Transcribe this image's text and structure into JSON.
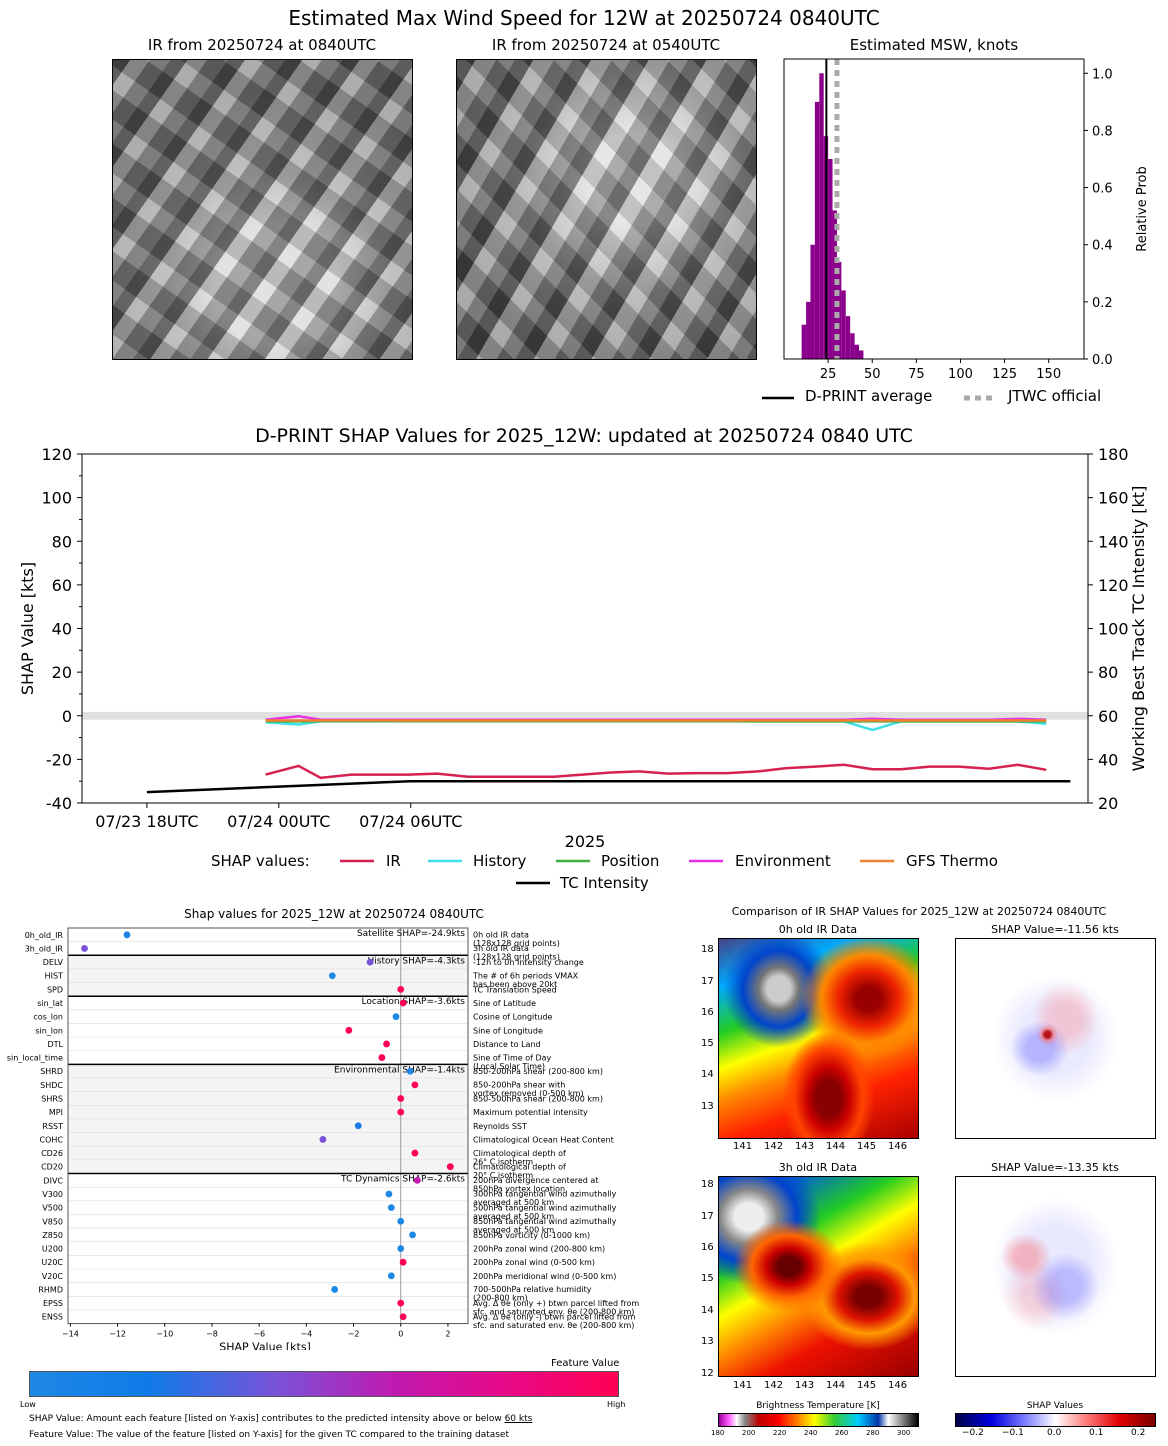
{
  "main_title": "Estimated Max Wind Speed for 12W at 20250724 0840UTC",
  "panel1_title": "IR from 20250724 at 0840UTC",
  "panel2_title": "IR from 20250724 at 0540UTC",
  "hist": {
    "title": "Estimated MSW, knots",
    "ylabel": "Relative Prob",
    "xticks": [
      "25",
      "50",
      "75",
      "100",
      "125",
      "150"
    ],
    "yticks": [
      "0.0",
      "0.2",
      "0.4",
      "0.6",
      "0.8",
      "1.0"
    ],
    "legend_dprint": "D-PRINT average",
    "legend_jtwc": "JTWC official"
  },
  "ts": {
    "title": "D-PRINT SHAP Values for 2025_12W: updated at 20250724 0840 UTC",
    "ylabel_left": "SHAP Value [kts]",
    "ylabel_right": "Working Best Track TC Intensity [kt]",
    "xlabel": "2025",
    "xticks": [
      "07/23 18UTC",
      "07/24 00UTC",
      "07/24 06UTC"
    ],
    "yticks_left": [
      "120",
      "100",
      "80",
      "60",
      "40",
      "20",
      "0",
      "-20",
      "-40"
    ],
    "yticks_right": [
      "180",
      "160",
      "140",
      "120",
      "100",
      "80",
      "60",
      "40",
      "20"
    ],
    "legend_prefix": "SHAP values:",
    "legend": [
      "IR",
      "History",
      "Position",
      "Environment",
      "GFS Thermo",
      "TC Intensity"
    ]
  },
  "bee": {
    "title": "Shap values for 2025_12W at 20250724 0840UTC",
    "xlabel": "SHAP Value [kts]",
    "xticks": [
      "−14",
      "−12",
      "−10",
      "−8",
      "−6",
      "−4",
      "−2",
      "0",
      "2"
    ],
    "groups": [
      "Satellite SHAP=-24.9kts",
      "History SHAP=-4.3kts",
      "Location SHAP=-3.6kts",
      "Environmental SHAP=-1.4kts",
      "TC Dynamics SHAP=-2.6kts"
    ],
    "features": [
      "0h_old_IR",
      "3h_old_IR",
      "DELV",
      "HIST",
      "SPD",
      "sin_lat",
      "cos_lon",
      "sin_lon",
      "DTL",
      "sin_local_time",
      "SHRD",
      "SHDC",
      "SHRS",
      "MPI",
      "RSST",
      "COHC",
      "CD26",
      "CD20",
      "DIVC",
      "V300",
      "V500",
      "V850",
      "Z850",
      "U200",
      "U20C",
      "V20C",
      "RHMD",
      "EPSS",
      "ENSS"
    ],
    "descriptions": [
      "0h old IR data\n(128x128 grid points)",
      "3h old IR data\n(128x128 grid points)",
      "-12h to 0h Intensity change",
      "The # of 6h periods VMAX\nhas been above 20kt",
      "TC Translation Speed",
      "Sine of Latitude",
      "Cosine of Longitude",
      "Sine of Longitude",
      "Distance to Land",
      "Sine of Time of Day\n(Local Solar Time)",
      "850-200hPa shear (200-800 km)",
      "850-200hPa shear with\nvortex removed (0-500 km)",
      "850-500hPa shear (200-800 km)",
      "Maximum potential intensity",
      "Reynolds SST",
      "Climatological Ocean Heat Content",
      "Climatological depth of\n26° C isotherm",
      "Climatological depth of\n20° C isotherm",
      "200hPa divergence centered at\n850hPa vortex location",
      "300hPa tangential wind azimuthally\naveraged at 500 km",
      "500hPa tangential wind azimuthally\naveraged at 500 km",
      "850hPa tangential wind azimuthally\naveraged at 500 km",
      "850hPa vorticity (0-1000 km)",
      "200hPa zonal wind (200-800 km)",
      "200hPa zonal wind (0-500 km)",
      "200hPa meridional wind (0-500 km)",
      "700-500hPa relative humidity\n(200-800 km)",
      "Avg. Δ θe (only +) btwn parcel lifted from\nsfc. and saturated env. θe (200-800 km)",
      "Avg. Δ θe (only -) btwn parcel lifted from\nsfc. and saturated env. θe (200-800 km)"
    ],
    "values": [
      -11.6,
      -13.4,
      -1.3,
      -2.9,
      0.0,
      0.1,
      -0.2,
      -2.2,
      -0.6,
      -0.8,
      0.4,
      0.6,
      0.0,
      0.0,
      -1.8,
      -3.3,
      0.6,
      2.1,
      0.7,
      -0.5,
      -0.4,
      0.0,
      0.5,
      0.0,
      0.1,
      -0.4,
      -2.8,
      0.0,
      0.1
    ],
    "feature_scores": [
      0.1,
      0.5,
      0.5,
      0.0,
      1.0,
      1.0,
      0.0,
      1.0,
      1.0,
      1.0,
      0.0,
      1.0,
      1.0,
      1.0,
      0.3,
      0.5,
      1.0,
      1.0,
      0.7,
      0.0,
      0.0,
      0.0,
      0.0,
      0.0,
      1.0,
      0.0,
      0.0,
      1.0,
      1.0
    ],
    "colorbar_label": "Feature Value",
    "colorbar_low": "Low",
    "colorbar_high": "High",
    "note1_prefix": "SHAP Value: Amount each feature [listed on Y-axis] contributes to the predicted intensity above or below ",
    "note1_underlined": "60 kts",
    "note2": "Feature Value: The value of the feature [listed on Y-axis] for the given TC compared to the training dataset"
  },
  "cmp": {
    "title": "Comparison of IR SHAP Values for 2025_12W at 20250724 0840UTC",
    "panel_0h": "0h old IR Data",
    "panel_3h": "3h old IR Data",
    "shap_0h": "SHAP Value=-11.56 kts",
    "shap_3h": "SHAP Value=-13.35 kts",
    "lon_ticks": [
      "141",
      "142",
      "143",
      "144",
      "145",
      "146"
    ],
    "lat_ticks_0h": [
      "18",
      "17",
      "16",
      "15",
      "14",
      "13"
    ],
    "lat_ticks_3h": [
      "18",
      "17",
      "16",
      "15",
      "14",
      "13",
      "12"
    ],
    "bt_label": "Brightness Temperature [K]",
    "bt_ticks": [
      "180",
      "200",
      "220",
      "240",
      "260",
      "280",
      "300"
    ],
    "shapval_label": "SHAP Values",
    "shapval_ticks": [
      "−0.2",
      "−0.1",
      "0.0",
      "0.1",
      "0.2"
    ]
  },
  "chart_data": [
    {
      "type": "bar",
      "title": "Estimated MSW, knots",
      "xlabel": "",
      "ylabel": "Relative Prob",
      "xlim": [
        0,
        170
      ],
      "ylim": [
        0,
        1.05
      ],
      "bin_width": 2.5,
      "bin_starts": [
        10,
        12.5,
        15,
        17.5,
        20,
        22.5,
        25,
        27.5,
        30,
        32.5,
        35,
        37.5,
        40,
        42.5
      ],
      "values": [
        0.12,
        0.2,
        0.4,
        0.9,
        1.0,
        0.78,
        0.7,
        0.52,
        0.34,
        0.24,
        0.15,
        0.09,
        0.05,
        0.03
      ],
      "dprint_average": 24,
      "jtwc_official": 30
    },
    {
      "type": "line",
      "title": "D-PRINT SHAP Values for 2025_12W: updated at 20250724 0840 UTC",
      "xlabel": "2025",
      "ylabel": "SHAP Value [kts]",
      "ylim": [
        -40,
        120
      ],
      "y2label": "Working Best Track TC Intensity [kt]",
      "y2lim": [
        20,
        180
      ],
      "x_hours_since_0723_18UTC": [
        5.4,
        6.9,
        7.9,
        9.3,
        10.6,
        11.9,
        13.2,
        14.6,
        15.9,
        17.2,
        18.5,
        19.8,
        21.1,
        22.4,
        23.7,
        25.0,
        26.4,
        27.8,
        29.1,
        30.4,
        31.7,
        33.0,
        34.3,
        35.6,
        36.9,
        38.3,
        39.6,
        40.9
      ],
      "series": [
        {
          "name": "IR",
          "color": "#d62050",
          "values": [
            -27,
            -23,
            -28.5,
            -27,
            -27,
            -27,
            -26.5,
            -28,
            -28,
            -28,
            -28,
            -27,
            -26,
            -25.5,
            -26.5,
            -26.3,
            -26.3,
            -25.5,
            -24,
            -23.3,
            -22.5,
            -24.5,
            -24.5,
            -23.3,
            -23.3,
            -24.3,
            -22.5,
            -24.8
          ]
        },
        {
          "name": "History",
          "color": "#40e0e8",
          "values": [
            -3,
            -4,
            -2.6,
            -2.6,
            -2.6,
            -2.5,
            -2.5,
            -2.4,
            -2.4,
            -2.4,
            -2.4,
            -2.4,
            -2.5,
            -2.5,
            -2.5,
            -2.5,
            -2.5,
            -2.6,
            -2.6,
            -2.6,
            -2.6,
            -6.5,
            -2.6,
            -2.6,
            -2.6,
            -2.6,
            -2.6,
            -3.7
          ]
        },
        {
          "name": "Position",
          "color": "#40b040",
          "values": [
            -2.6,
            -2.6,
            -2.5,
            -2.5,
            -2.5,
            -2.5,
            -2.5,
            -2.5,
            -2.5,
            -2.5,
            -2.5,
            -2.5,
            -2.5,
            -2.5,
            -2.5,
            -2.5,
            -2.5,
            -2.6,
            -2.6,
            -2.6,
            -2.6,
            -2.6,
            -2.6,
            -2.6,
            -2.6,
            -2.6,
            -2.6,
            -2.6
          ]
        },
        {
          "name": "Environment",
          "color": "#e830e8",
          "values": [
            -1.8,
            -0.2,
            -1.8,
            -1.8,
            -1.8,
            -1.8,
            -1.8,
            -1.8,
            -1.8,
            -1.8,
            -1.8,
            -1.8,
            -1.8,
            -1.8,
            -1.8,
            -1.8,
            -1.8,
            -1.8,
            -1.8,
            -1.8,
            -1.8,
            -1.4,
            -1.8,
            -1.8,
            -1.8,
            -1.8,
            -1.4,
            -1.8
          ]
        },
        {
          "name": "GFS Thermo",
          "color": "#f08030",
          "values": [
            -2.2,
            -2.2,
            -2.2,
            -2.2,
            -2.2,
            -2.2,
            -2.2,
            -2.2,
            -2.2,
            -2.2,
            -2.2,
            -2.2,
            -2.2,
            -2.2,
            -2.2,
            -2.2,
            -2.2,
            -2.2,
            -2.2,
            -2.2,
            -2.2,
            -2.2,
            -2.2,
            -2.2,
            -2.2,
            -2.2,
            -2.2,
            -2.2
          ]
        }
      ],
      "tc_intensity": {
        "name": "TC Intensity",
        "color": "#000000",
        "x": [
          0,
          6,
          12,
          18,
          24,
          30,
          36,
          42
        ],
        "values_kt": [
          25,
          27.5,
          30,
          30,
          30,
          30,
          30,
          30
        ]
      }
    }
  ]
}
